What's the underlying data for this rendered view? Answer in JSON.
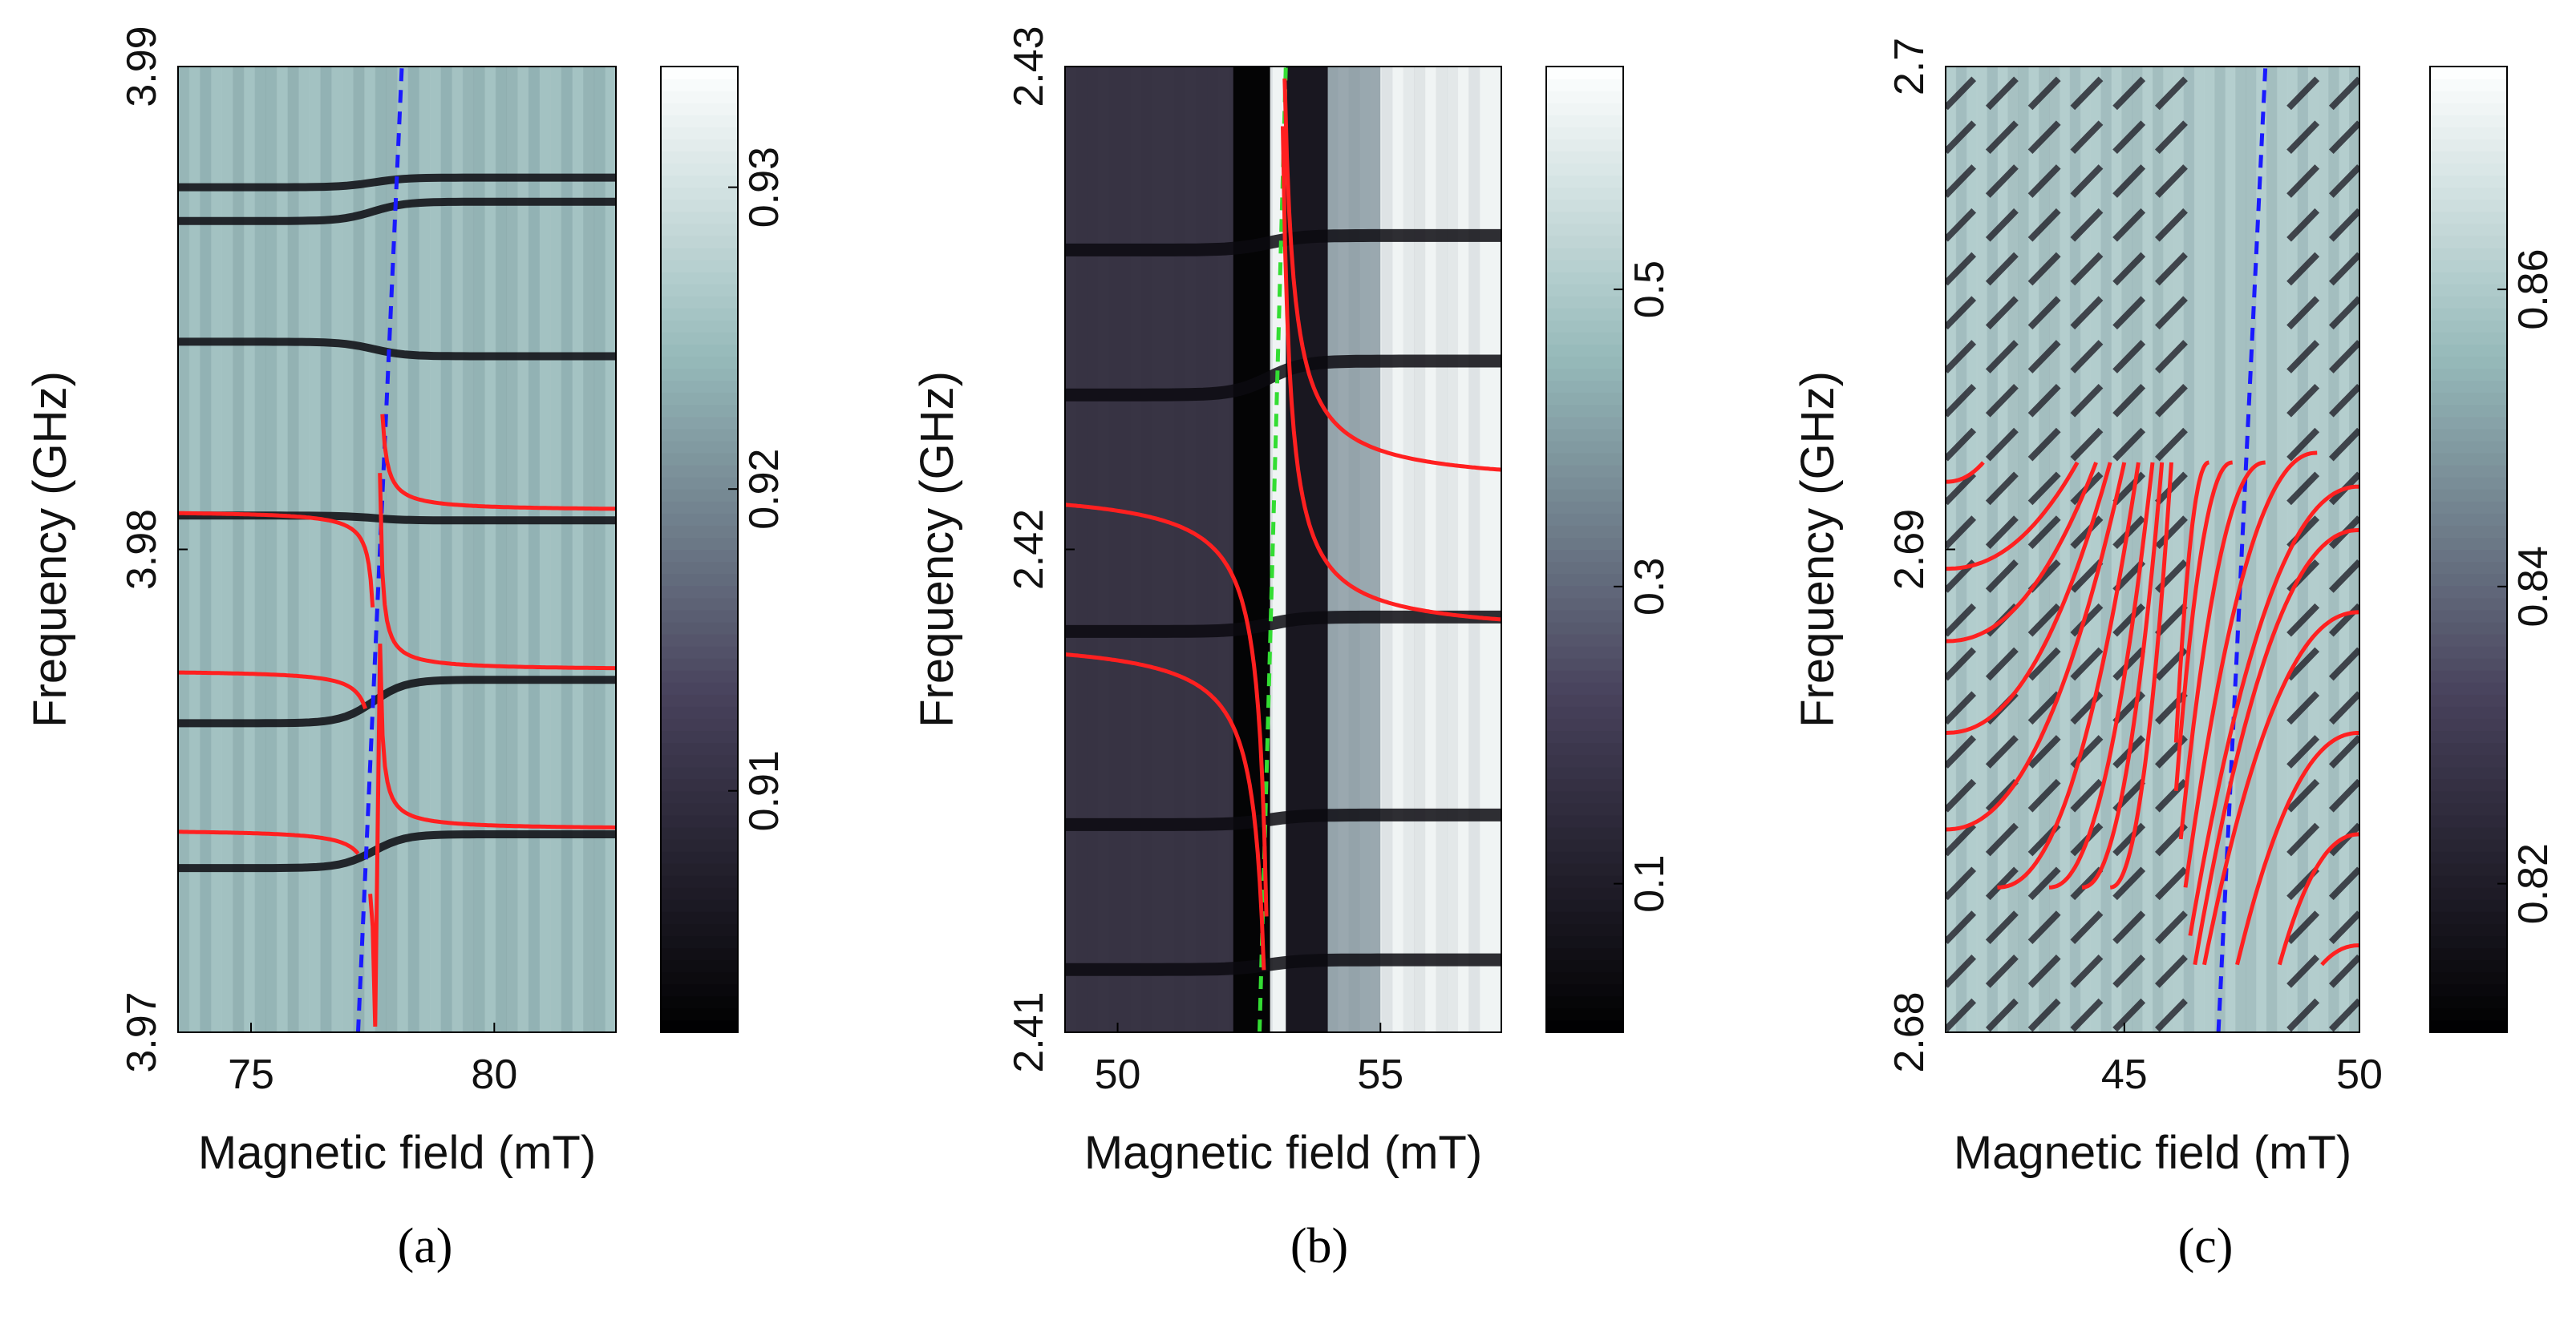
{
  "chart_data": [
    {
      "type": "heatmap",
      "panel": "a",
      "caption": "(a)",
      "xlabel": "Magnetic field (mT)",
      "ylabel": "Frequency (GHz)",
      "xlim": [
        73.5,
        82.5
      ],
      "ylim": [
        3.97,
        3.99
      ],
      "xticks": [
        75,
        80
      ],
      "yticks": [
        3.97,
        3.98,
        3.99
      ],
      "xtick_labels": [
        "75",
        "80"
      ],
      "ytick_labels": [
        "3.97",
        "3.98",
        "3.99"
      ],
      "colorbar": {
        "range": [
          0.902,
          0.934
        ],
        "ticks": [
          0.91,
          0.92,
          0.93
        ],
        "tick_labels": [
          "0.91",
          "0.92",
          "0.93"
        ]
      },
      "background_value": 0.925,
      "dispersive_resonances": [
        {
          "left_f": 3.9734,
          "right_f": 3.9741
        },
        {
          "left_f": 3.9764,
          "right_f": 3.9773
        },
        {
          "left_f": 3.9807,
          "right_f": 3.9806
        },
        {
          "left_f": 3.9843,
          "right_f": 3.984
        },
        {
          "left_f": 3.9868,
          "right_f": 3.9872
        },
        {
          "left_f": 3.9875,
          "right_f": 3.9877
        }
      ],
      "dashed_line": {
        "color": "#1a1aff",
        "points": [
          [
            77.2,
            3.97
          ],
          [
            78.1,
            3.99
          ]
        ]
      },
      "fit_curves": {
        "color": "#ff2020",
        "b0": 77.6,
        "a": 0.0002,
        "branches": [
          {
            "side": "left",
            "f0": 3.9742,
            "x_range": [
              73.5,
              77.2
            ]
          },
          {
            "side": "left",
            "f0": 3.9775,
            "x_range": [
              73.5,
              77.35
            ]
          },
          {
            "side": "left",
            "f0": 3.9808,
            "x_range": [
              73.5,
              77.5
            ]
          },
          {
            "side": "right",
            "f0": 3.9742,
            "x_range": [
              77.45,
              82.5
            ]
          },
          {
            "side": "right",
            "f0": 3.9775,
            "x_range": [
              77.6,
              82.5
            ]
          },
          {
            "side": "right",
            "f0": 3.9808,
            "x_range": [
              77.7,
              82.5
            ]
          }
        ]
      }
    },
    {
      "type": "heatmap",
      "panel": "b",
      "caption": "(b)",
      "xlabel": "Magnetic field (mT)",
      "ylabel": "Frequency (GHz)",
      "xlim": [
        49,
        57.3
      ],
      "ylim": [
        2.41,
        2.43
      ],
      "xticks": [
        50,
        55
      ],
      "yticks": [
        2.41,
        2.42,
        2.43
      ],
      "xtick_labels": [
        "50",
        "55"
      ],
      "ytick_labels": [
        "2.41",
        "2.42",
        "2.43"
      ],
      "colorbar": {
        "range": [
          0.0,
          0.65
        ],
        "ticks": [
          0.1,
          0.3,
          0.5
        ],
        "tick_labels": [
          "0.1",
          "0.3",
          "0.5"
        ]
      },
      "background_value": 0.62,
      "dispersive_resonances": [
        {
          "left_f": 2.4113,
          "right_f": 2.4115
        },
        {
          "left_f": 2.4143,
          "right_f": 2.4145
        },
        {
          "left_f": 2.4183,
          "right_f": 2.4186
        },
        {
          "left_f": 2.4232,
          "right_f": 2.4239
        },
        {
          "left_f": 2.4262,
          "right_f": 2.4265
        }
      ],
      "dashed_line": {
        "color": "#33dd33",
        "points": [
          [
            52.7,
            2.41
          ],
          [
            53.2,
            2.43
          ]
        ]
      },
      "fit_curves": {
        "color": "#ff2020",
        "b0": 53.0,
        "a": 0.0015,
        "branches": [
          {
            "side": "left",
            "f0": 2.4182,
            "x_range": [
              49,
              52.9
            ]
          },
          {
            "side": "left",
            "f0": 2.4213,
            "x_range": [
              49,
              52.95
            ]
          },
          {
            "side": "right",
            "f0": 2.4182,
            "x_range": [
              53.1,
              57.3
            ]
          },
          {
            "side": "right",
            "f0": 2.4213,
            "x_range": [
              53.05,
              57.3
            ]
          }
        ]
      }
    },
    {
      "type": "heatmap",
      "panel": "c",
      "caption": "(c)",
      "xlabel": "Magnetic field (mT)",
      "ylabel": "Frequency (GHz)",
      "xlim": [
        41.2,
        50
      ],
      "ylim": [
        2.68,
        2.7
      ],
      "xticks": [
        45,
        50
      ],
      "yticks": [
        2.68,
        2.69,
        2.7
      ],
      "xtick_labels": [
        "45",
        "50"
      ],
      "ytick_labels": [
        "2.68",
        "2.69",
        "2.7"
      ],
      "colorbar": {
        "range": [
          0.81,
          0.875
        ],
        "ticks": [
          0.82,
          0.84,
          0.86
        ],
        "tick_labels": [
          "0.82",
          "0.84",
          "0.86"
        ]
      },
      "background_value": 0.86,
      "dashed_line": {
        "color": "#1a1aff",
        "points": [
          [
            47.0,
            2.68
          ],
          [
            48.0,
            2.7
          ]
        ]
      },
      "fit_curves": {
        "color": "#ff2020",
        "left": [
          {
            "x0": 41.2,
            "x1": 42.0,
            "f0": 2.6914,
            "f1": 2.6918
          },
          {
            "x0": 41.2,
            "x1": 44.0,
            "f0": 2.6896,
            "f1": 2.6918
          },
          {
            "x0": 41.2,
            "x1": 44.4,
            "f0": 2.6881,
            "f1": 2.6918
          },
          {
            "x0": 41.2,
            "x1": 44.7,
            "f0": 2.6862,
            "f1": 2.6918
          },
          {
            "x0": 41.2,
            "x1": 45.0,
            "f0": 2.6842,
            "f1": 2.6918
          },
          {
            "x0": 42.3,
            "x1": 45.3,
            "f0": 2.683,
            "f1": 2.6918
          },
          {
            "x0": 43.4,
            "x1": 45.6,
            "f0": 2.683,
            "f1": 2.6918
          },
          {
            "x0": 44.1,
            "x1": 45.8,
            "f0": 2.683,
            "f1": 2.6918
          },
          {
            "x0": 44.7,
            "x1": 46.0,
            "f0": 2.683,
            "f1": 2.6918
          }
        ],
        "right": [
          {
            "x0": 49.2,
            "x1": 50,
            "f0": 2.6814,
            "f1": 2.6818
          },
          {
            "x0": 48.3,
            "x1": 50,
            "f0": 2.6814,
            "f1": 2.6841
          },
          {
            "x0": 47.4,
            "x1": 50,
            "f0": 2.6814,
            "f1": 2.6862
          },
          {
            "x0": 46.7,
            "x1": 50,
            "f0": 2.6814,
            "f1": 2.6887
          },
          {
            "x0": 46.5,
            "x1": 50,
            "f0": 2.6814,
            "f1": 2.6904
          },
          {
            "x0": 46.4,
            "x1": 50,
            "f0": 2.682,
            "f1": 2.6913
          },
          {
            "x0": 46.3,
            "x1": 49.1,
            "f0": 2.683,
            "f1": 2.692
          },
          {
            "x0": 46.2,
            "x1": 48.0,
            "f0": 2.684,
            "f1": 2.6918
          },
          {
            "x0": 46.1,
            "x1": 47.3,
            "f0": 2.685,
            "f1": 2.6918
          },
          {
            "x0": 46.1,
            "x1": 46.8,
            "f0": 2.686,
            "f1": 2.6918
          }
        ]
      }
    }
  ]
}
